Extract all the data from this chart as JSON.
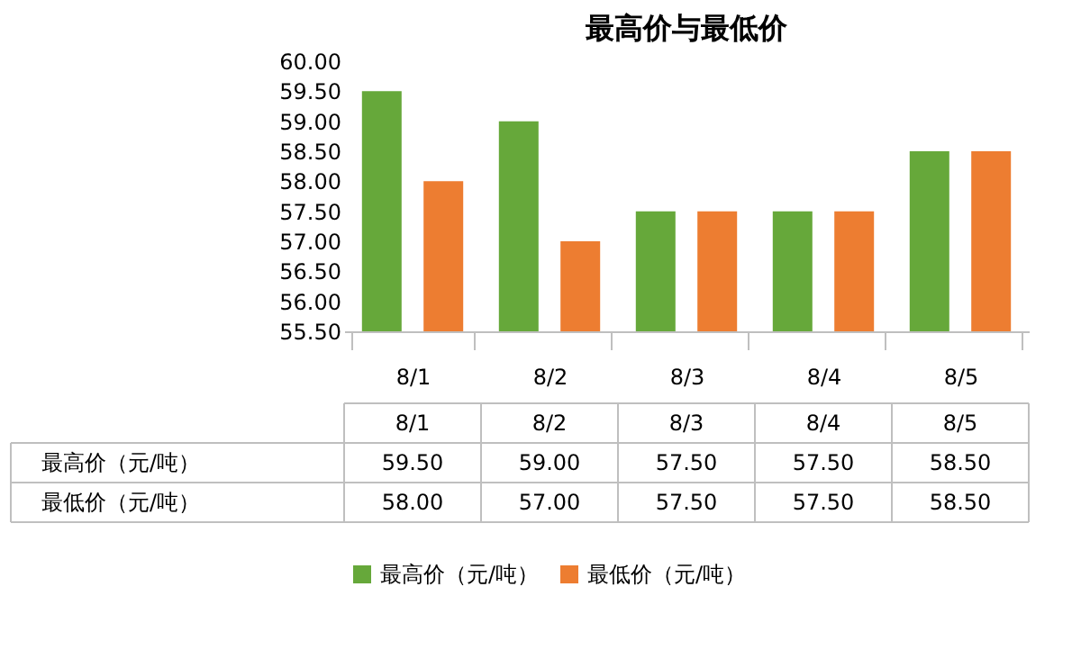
{
  "chart_data": {
    "type": "bar",
    "title": "最高价与最低价",
    "categories": [
      "8/1",
      "8/2",
      "8/3",
      "8/4",
      "8/5"
    ],
    "series": [
      {
        "name": "最高价（元/吨）",
        "color": "#66a83a",
        "values": [
          59.5,
          59.0,
          57.5,
          57.5,
          58.5
        ],
        "value_labels": [
          "59.50",
          "59.00",
          "57.50",
          "57.50",
          "58.50"
        ]
      },
      {
        "name": "最低价（元/吨）",
        "color": "#ed7d31",
        "values": [
          58.0,
          57.0,
          57.5,
          57.5,
          58.5
        ],
        "value_labels": [
          "58.00",
          "57.00",
          "57.50",
          "57.50",
          "58.50"
        ]
      }
    ],
    "ylim": [
      55.5,
      60
    ],
    "yticks": [
      {
        "value": 55.5,
        "label": "55.50"
      },
      {
        "value": 56,
        "label": "56.00"
      },
      {
        "value": 56.5,
        "label": "56.50"
      },
      {
        "value": 57,
        "label": "57.00"
      },
      {
        "value": 57.5,
        "label": "57.50"
      },
      {
        "value": 58,
        "label": "58.00"
      },
      {
        "value": 58.5,
        "label": "58.50"
      },
      {
        "value": 59,
        "label": "59.00"
      },
      {
        "value": 59.5,
        "label": "59.50"
      },
      {
        "value": 60,
        "label": "60.00"
      }
    ],
    "grid": false,
    "legend": "bottom"
  }
}
